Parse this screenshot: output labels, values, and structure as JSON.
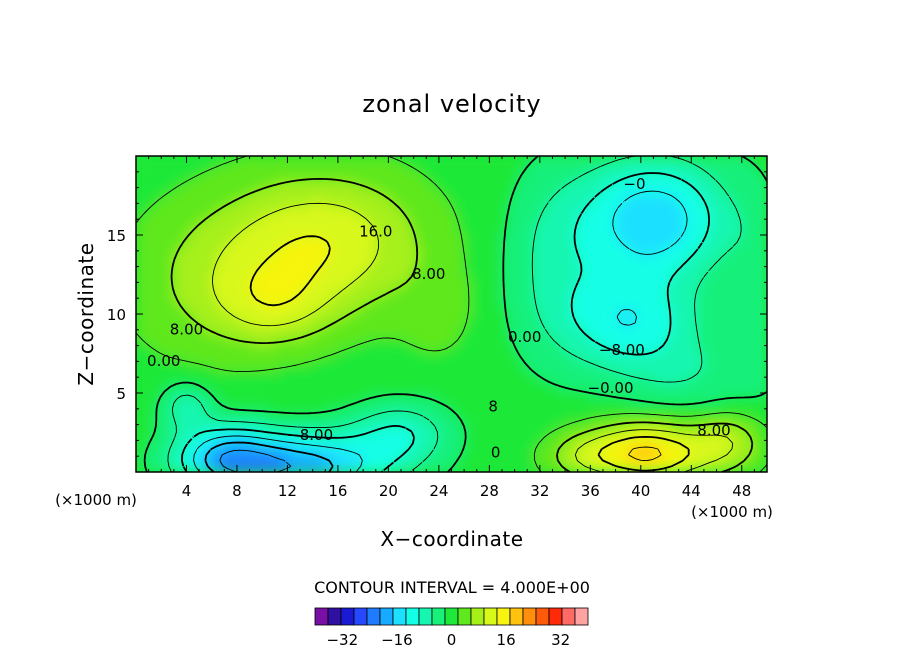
{
  "chart_data": {
    "type": "heatmap",
    "title": "zonal velocity",
    "xlabel": "X−coordinate",
    "ylabel": "Z−coordinate",
    "x_unit": "(×1000 m)",
    "y_unit": "(×1000 m)",
    "xlim": [
      0,
      50
    ],
    "ylim": [
      0,
      20
    ],
    "x_ticks": [
      4,
      8,
      12,
      16,
      20,
      24,
      28,
      32,
      36,
      40,
      44,
      48
    ],
    "x_tick_labels": [
      "4",
      "8",
      "12",
      "16",
      "20",
      "24",
      "28",
      "32",
      "36",
      "40",
      "44",
      "48"
    ],
    "y_ticks": [
      5,
      10,
      15
    ],
    "y_tick_labels": [
      "5",
      "10",
      "15"
    ],
    "contour_interval_text": "CONTOUR INTERVAL = 4.000E+00",
    "contour_interval": 4,
    "contour_labels": [
      {
        "text": "16.0",
        "x": 19.0,
        "z": 15.2
      },
      {
        "text": "8.00",
        "x": 23.2,
        "z": 12.5
      },
      {
        "text": "8.00",
        "x": 4.0,
        "z": 9.0
      },
      {
        "text": "0.00",
        "x": 2.2,
        "z": 7.0
      },
      {
        "text": "0.00",
        "x": 30.8,
        "z": 8.5
      },
      {
        "text": "−8.00",
        "x": 38.5,
        "z": 7.7
      },
      {
        "text": "−0.00",
        "x": 37.6,
        "z": 5.3
      },
      {
        "text": "8.00",
        "x": 45.8,
        "z": 2.6
      },
      {
        "text": "−8.00",
        "x": 13.8,
        "z": 2.3
      },
      {
        "text": "0",
        "x": 28.5,
        "z": 1.2
      },
      {
        "text": "8",
        "x": 28.3,
        "z": 4.1
      },
      {
        "text": "−0",
        "x": 39.5,
        "z": 18.2
      }
    ],
    "colorbar": {
      "ticks": [
        -32,
        -16,
        0,
        16,
        32
      ],
      "tick_labels": [
        "−32",
        "−16",
        "0",
        "16",
        "32"
      ],
      "levels": [
        -40,
        -36,
        -32,
        -28,
        -24,
        -20,
        -16,
        -12,
        -8,
        -4,
        0,
        4,
        8,
        12,
        16,
        20,
        24,
        28,
        32,
        36,
        40
      ],
      "colors": [
        "#7a0fa5",
        "#3010a0",
        "#1a1ad2",
        "#2648ff",
        "#1f7bff",
        "#18aaff",
        "#1de0ff",
        "#13ffe6",
        "#16f6b0",
        "#19f07a",
        "#1ee838",
        "#5fe81e",
        "#a6f01a",
        "#d8f81a",
        "#f7f410",
        "#ffc20f",
        "#ff8e0d",
        "#ff5a0a",
        "#ff2a0a",
        "#ff6a64",
        "#ffa2a2"
      ]
    },
    "features": [
      {
        "kind": "max",
        "x": 14.8,
        "z": 14.8,
        "value": 20
      },
      {
        "kind": "max",
        "x": 10.0,
        "z": 10.8,
        "value": 16
      },
      {
        "kind": "max",
        "x": 40.8,
        "z": 1.0,
        "value": 20
      },
      {
        "kind": "min",
        "x": 40.5,
        "z": 15.8,
        "value": -18
      },
      {
        "kind": "min",
        "x": 12.5,
        "z": 0.4,
        "value": -22
      },
      {
        "kind": "min",
        "x": 39.8,
        "z": 9.6,
        "value": -14
      }
    ]
  }
}
